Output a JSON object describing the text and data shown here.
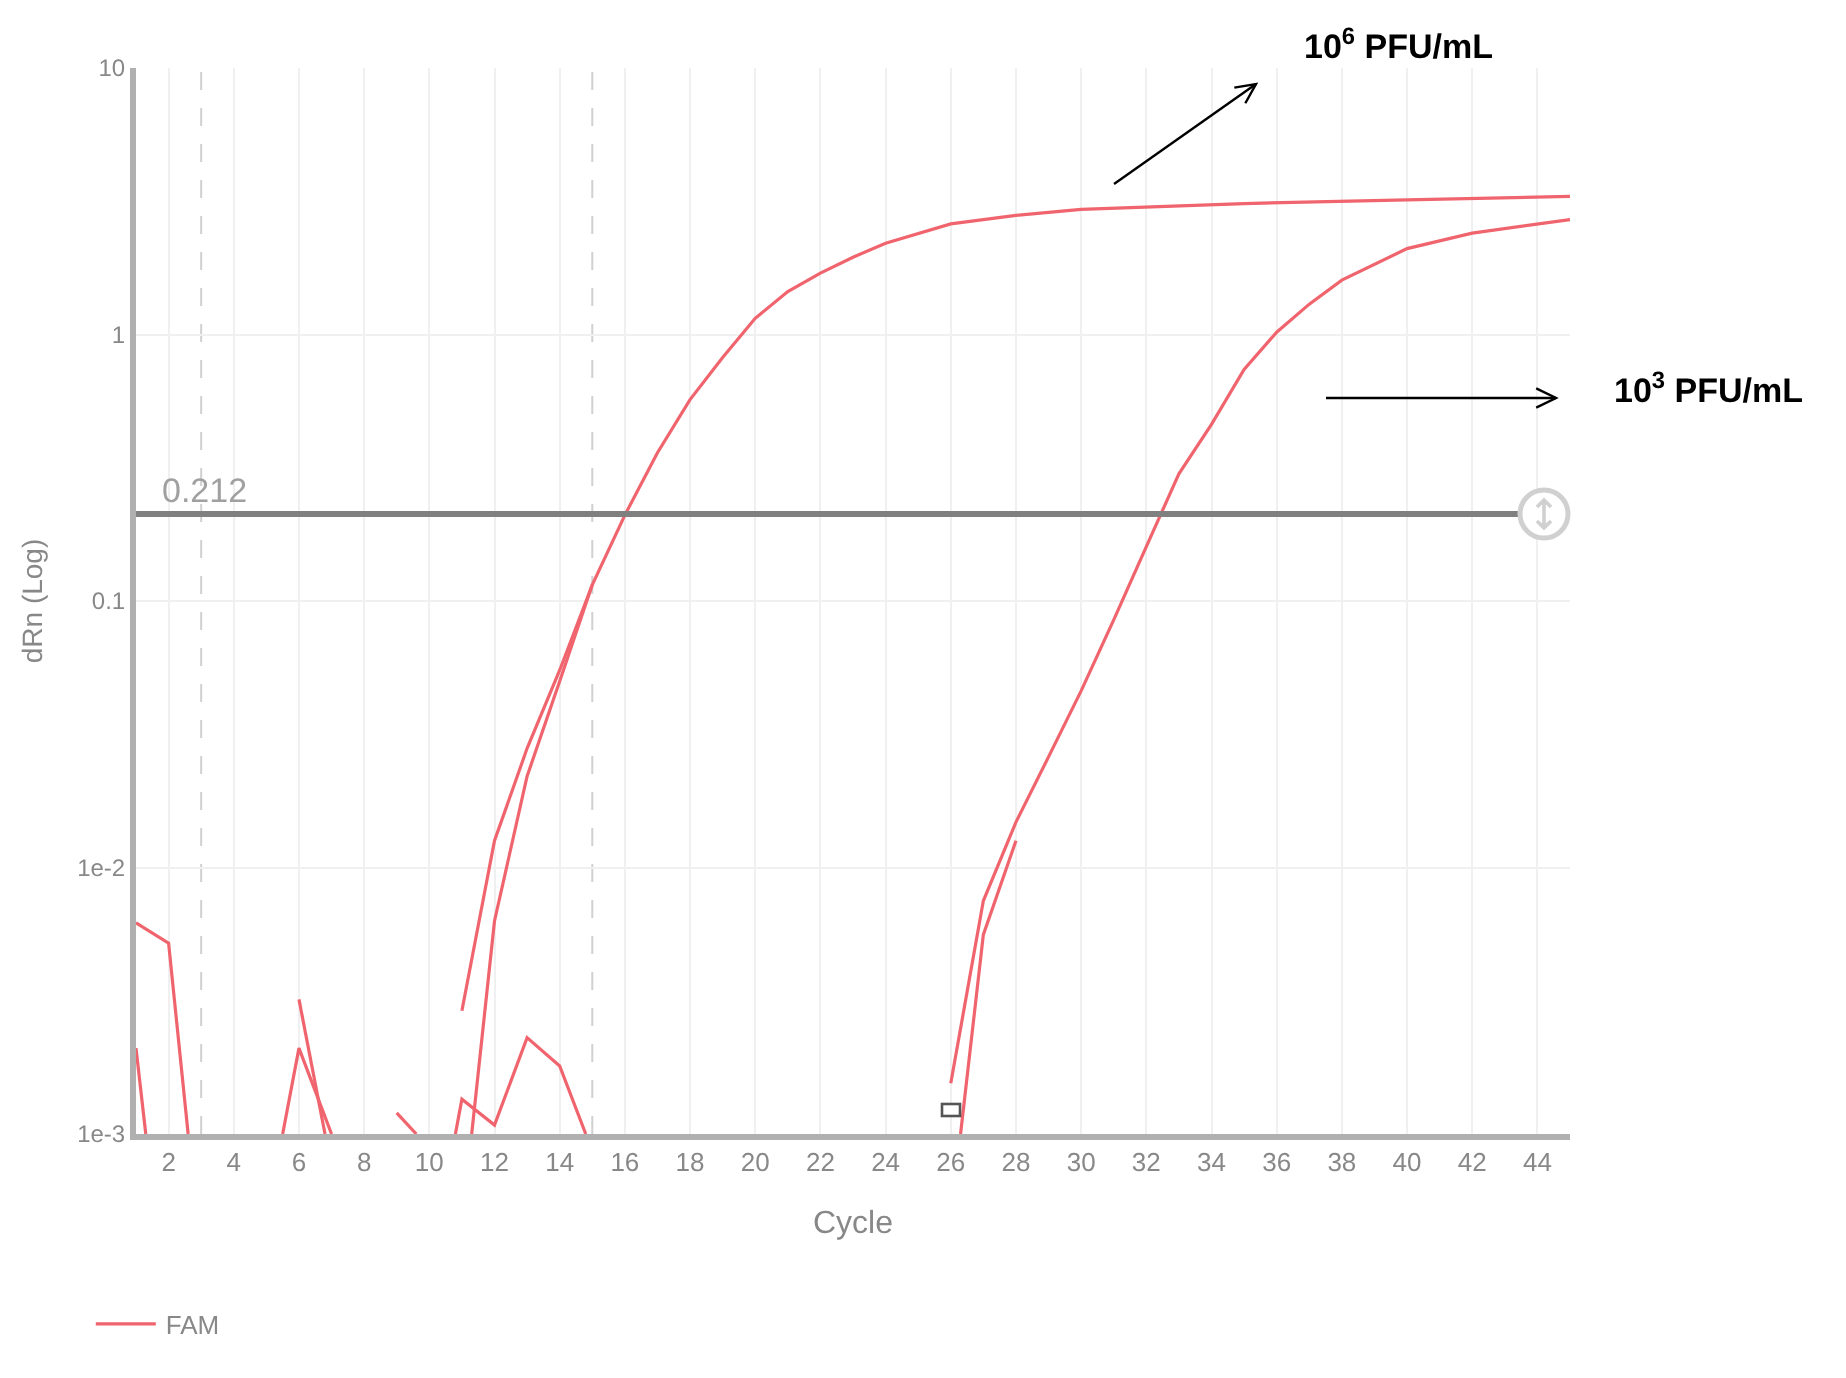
{
  "chart_data": {
    "type": "line",
    "xlabel": "Cycle",
    "ylabel": "dRn (Log)",
    "log": "y",
    "grid": true,
    "legend": "bottom",
    "line_style": "solid",
    "xlim": [
      1,
      45
    ],
    "xticks": [
      2,
      4,
      6,
      8,
      10,
      12,
      14,
      16,
      18,
      20,
      22,
      24,
      26,
      28,
      30,
      32,
      34,
      36,
      38,
      40,
      42,
      44
    ],
    "ylim": [
      0.001,
      10
    ],
    "yticks": [
      {
        "value": 0.001,
        "label": "1e-3"
      },
      {
        "value": 0.01,
        "label": "1e-2"
      },
      0.1,
      1,
      10
    ],
    "series": [
      {
        "name": "FAM",
        "color": "#f0646e",
        "x": [
          11,
          12,
          13,
          14,
          15,
          16,
          17,
          18,
          19,
          20,
          21,
          22,
          23,
          24,
          26,
          28,
          30,
          35,
          40,
          45
        ],
        "values": [
          0.0029,
          0.0126,
          0.028,
          0.055,
          0.115,
          0.21,
          0.36,
          0.57,
          0.82,
          1.15,
          1.45,
          1.7,
          1.95,
          2.2,
          2.6,
          2.8,
          2.95,
          3.1,
          3.2,
          3.3
        ]
      },
      {
        "color": "#f0646e",
        "x": [
          11.3,
          12,
          13,
          14,
          15
        ],
        "values": [
          0.001,
          0.0063,
          0.022,
          0.05,
          0.115
        ]
      },
      {
        "color": "#f0646e",
        "x": [
          1,
          2,
          2.6
        ],
        "values": [
          0.0062,
          0.0052,
          0.001
        ]
      },
      {
        "color": "#f0646e",
        "x": [
          1,
          1.3
        ],
        "values": [
          0.0021,
          0.001
        ]
      },
      {
        "color": "#f0646e",
        "x": [
          6,
          6.8
        ],
        "values": [
          0.0032,
          0.001
        ]
      },
      {
        "color": "#f0646e",
        "x": [
          5.5,
          6,
          7
        ],
        "values": [
          0.001,
          0.0021,
          0.001
        ]
      },
      {
        "color": "#f0646e",
        "x": [
          9,
          9.6
        ],
        "values": [
          0.0012,
          0.001
        ]
      },
      {
        "color": "#f0646e",
        "x": [
          10.8,
          11,
          12,
          13,
          14,
          14.8
        ],
        "values": [
          0.001,
          0.00135,
          0.00108,
          0.0023,
          0.0018,
          0.001
        ]
      },
      {
        "color": "#f0646e",
        "x": [
          26,
          27,
          28,
          29,
          30,
          31,
          32,
          33,
          34,
          35,
          36,
          37,
          38,
          40,
          42,
          45
        ],
        "values": [
          0.00155,
          0.0075,
          0.0148,
          0.026,
          0.046,
          0.085,
          0.16,
          0.3,
          0.46,
          0.74,
          1.02,
          1.3,
          1.6,
          2.1,
          2.4,
          2.7
        ]
      },
      {
        "color": "#f0646e",
        "x": [
          26.3,
          27,
          28
        ],
        "values": [
          0.001,
          0.0056,
          0.0126
        ]
      }
    ],
    "ref_lines": [
      {
        "axis": "y",
        "value": 0.212,
        "label": "0.212",
        "color": "#808080"
      },
      {
        "axis": "x",
        "value": 3,
        "color": "#d0d0d0",
        "line_style": "dashed"
      },
      {
        "axis": "x",
        "value": 15,
        "color": "#d0d0d0",
        "line_style": "dashed"
      }
    ],
    "annotations": [
      "10$^{6}$ PFU/mL",
      "10$^{3}$ PFU/mL"
    ]
  }
}
